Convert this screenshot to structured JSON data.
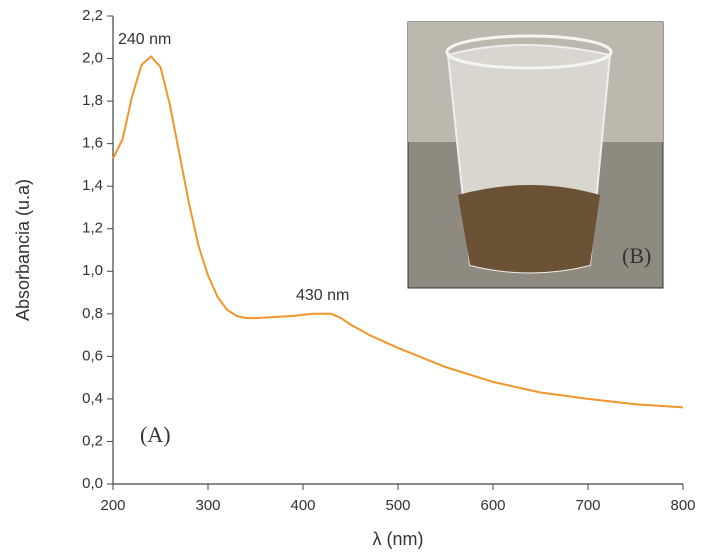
{
  "chart_data": {
    "type": "line",
    "xlabel": "λ (nm)",
    "ylabel": "Absorbancia (u.a)",
    "x": [
      200,
      210,
      220,
      230,
      240,
      250,
      260,
      270,
      280,
      290,
      300,
      310,
      320,
      330,
      340,
      350,
      370,
      390,
      410,
      430,
      440,
      450,
      470,
      500,
      550,
      600,
      650,
      700,
      750,
      800
    ],
    "values": [
      1.53,
      1.62,
      1.82,
      1.97,
      2.01,
      1.96,
      1.78,
      1.55,
      1.32,
      1.12,
      0.98,
      0.88,
      0.82,
      0.79,
      0.78,
      0.78,
      0.785,
      0.79,
      0.8,
      0.8,
      0.78,
      0.75,
      0.7,
      0.64,
      0.55,
      0.48,
      0.43,
      0.4,
      0.375,
      0.36
    ],
    "color": "#f0962a",
    "xlim": [
      200,
      800
    ],
    "xticks": [
      200,
      300,
      400,
      500,
      600,
      700,
      800
    ],
    "ylim": [
      0,
      2.2
    ],
    "yticks": [
      {
        "value": 0,
        "label": "0,0"
      },
      {
        "value": 0.2,
        "label": "0,2"
      },
      {
        "value": 0.4,
        "label": "0,4"
      },
      {
        "value": 0.6,
        "label": "0,6"
      },
      {
        "value": 0.8,
        "label": "0,8"
      },
      {
        "value": 1.0,
        "label": "1,0"
      },
      {
        "value": 1.2,
        "label": "1,2"
      },
      {
        "value": 1.4,
        "label": "1,4"
      },
      {
        "value": 1.6,
        "label": "1,6"
      },
      {
        "value": 1.8,
        "label": "1,8"
      },
      {
        "value": 2.0,
        "label": "2,0"
      },
      {
        "value": 2.2,
        "label": "2,2"
      }
    ],
    "annotations": [
      "240 nm",
      "430 nm",
      "(A)",
      "(B)"
    ]
  }
}
